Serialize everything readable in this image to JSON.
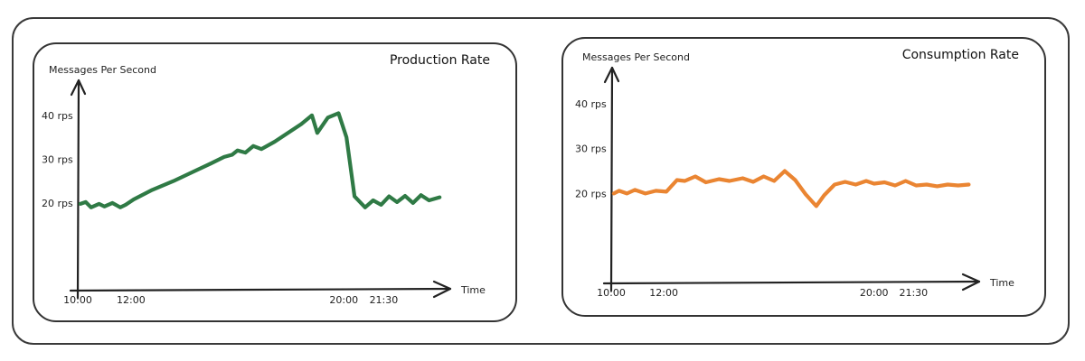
{
  "chart_data": [
    {
      "type": "line",
      "title": "Production Rate",
      "ylabel": "Messages Per Second",
      "xlabel": "Time",
      "color": "#2f7a45",
      "x_ticks": [
        {
          "label": "10:00",
          "value": 10.0
        },
        {
          "label": "12:00",
          "value": 12.0
        },
        {
          "label": "20:00",
          "value": 20.0
        },
        {
          "label": "21:30",
          "value": 21.5
        }
      ],
      "y_ticks": [
        {
          "label": "20 rps",
          "value": 20
        },
        {
          "label": "30 rps",
          "value": 30
        },
        {
          "label": "40 rps",
          "value": 40
        }
      ],
      "xlim": [
        10.0,
        24.0
      ],
      "ylim": [
        0,
        48
      ],
      "series": [
        {
          "x": [
            10.1,
            10.3,
            10.5,
            10.8,
            11.0,
            11.3,
            11.6,
            11.8,
            12.1,
            12.8,
            13.6,
            14.3,
            15.0,
            15.5,
            15.8,
            16.0,
            16.3,
            16.6,
            16.9,
            17.4,
            17.9,
            18.4,
            18.8,
            19.0,
            19.4,
            19.8,
            20.1,
            20.4,
            20.8,
            21.1,
            21.4,
            21.7,
            22.0,
            22.3,
            22.6,
            22.9,
            23.2,
            23.6
          ],
          "y": [
            19.8,
            20.2,
            19.0,
            19.8,
            19.2,
            20.0,
            19.0,
            19.6,
            20.8,
            23.0,
            25.0,
            27.0,
            29.0,
            30.5,
            31.0,
            32.0,
            31.5,
            33.0,
            32.3,
            34.0,
            36.0,
            38.0,
            40.0,
            36.0,
            39.5,
            40.5,
            35.0,
            21.5,
            19.0,
            20.6,
            19.6,
            21.5,
            20.2,
            21.6,
            20.0,
            21.8,
            20.6,
            21.3
          ]
        }
      ]
    },
    {
      "type": "line",
      "title": "Consumption Rate",
      "ylabel": "Messages Per Second",
      "xlabel": "Time",
      "color": "#ea8532",
      "x_ticks": [
        {
          "label": "10:00",
          "value": 10.0
        },
        {
          "label": "12:00",
          "value": 12.0
        },
        {
          "label": "20:00",
          "value": 20.0
        },
        {
          "label": "21:30",
          "value": 21.5
        }
      ],
      "y_ticks": [
        {
          "label": "20 rps",
          "value": 20
        },
        {
          "label": "30 rps",
          "value": 30
        },
        {
          "label": "40 rps",
          "value": 40
        }
      ],
      "xlim": [
        10.0,
        24.0
      ],
      "ylim": [
        0,
        48
      ],
      "series": [
        {
          "x": [
            10.1,
            10.3,
            10.6,
            10.9,
            11.3,
            11.7,
            12.1,
            12.5,
            12.8,
            13.2,
            13.6,
            14.1,
            14.5,
            15.0,
            15.4,
            15.8,
            16.2,
            16.6,
            17.0,
            17.4,
            17.8,
            18.1,
            18.5,
            18.9,
            19.3,
            19.7,
            20.0,
            20.4,
            20.8,
            21.2,
            21.6,
            22.0,
            22.4,
            22.8,
            23.2,
            23.6
          ],
          "y": [
            20.0,
            20.6,
            20.0,
            20.8,
            20.0,
            20.6,
            20.4,
            23.0,
            22.8,
            23.8,
            22.5,
            23.2,
            22.8,
            23.4,
            22.6,
            23.8,
            22.8,
            25.0,
            23.0,
            19.8,
            17.2,
            19.6,
            22.0,
            22.6,
            22.0,
            22.8,
            22.2,
            22.5,
            21.8,
            22.8,
            21.8,
            22.0,
            21.6,
            22.0,
            21.8,
            22.0
          ]
        }
      ]
    }
  ]
}
